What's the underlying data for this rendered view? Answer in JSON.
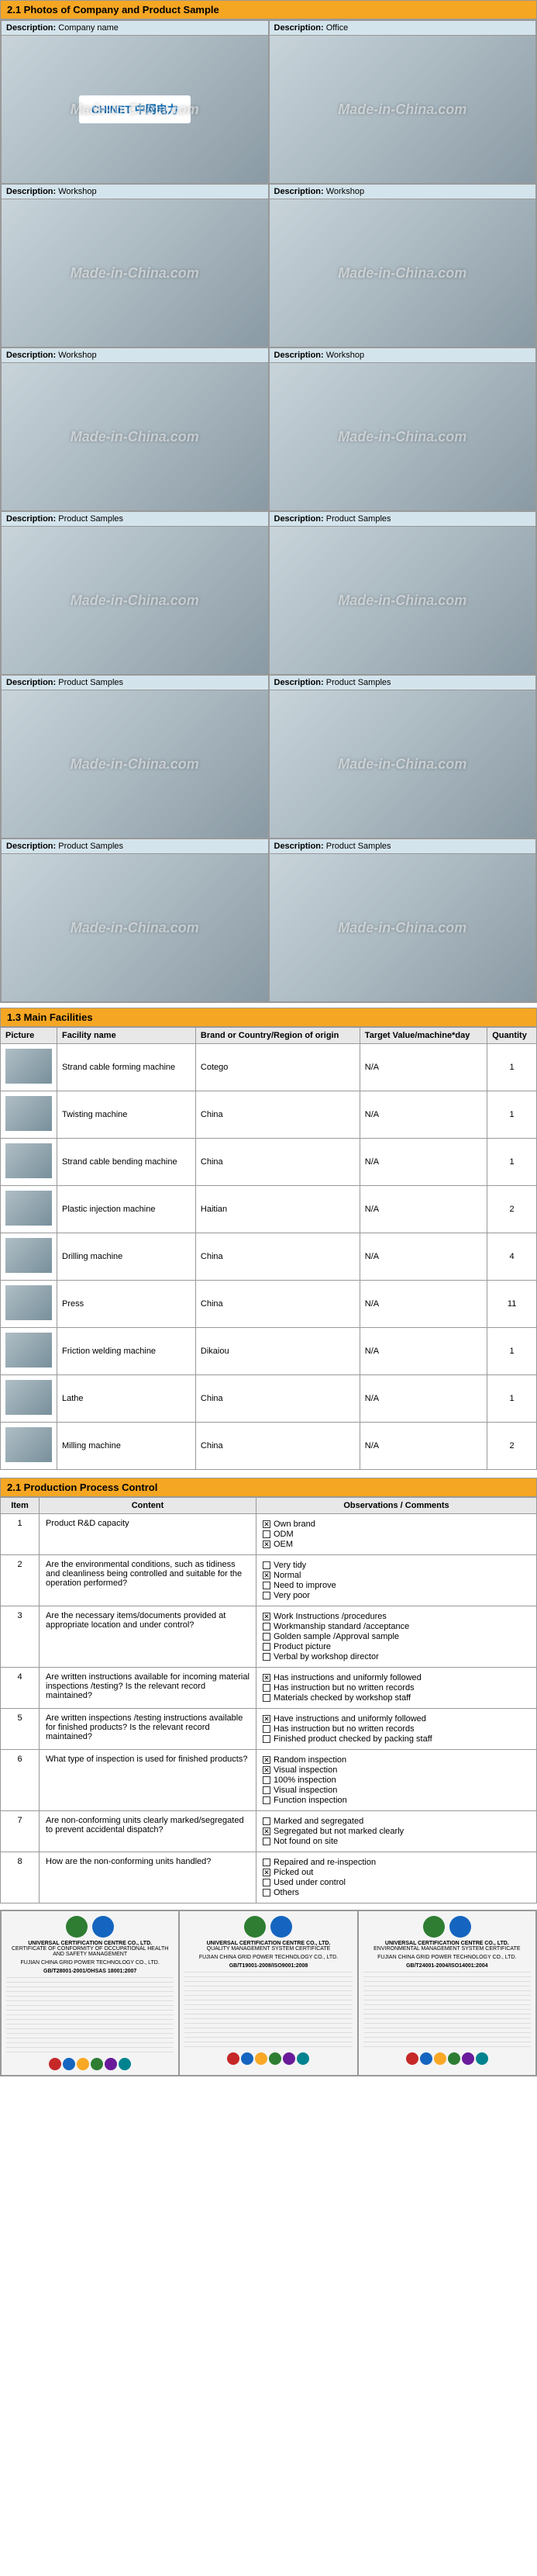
{
  "sections": {
    "photos_title": "2.1 Photos of Company and Product Sample",
    "facilities_title": "1.3 Main Facilities",
    "ppc_title": "2.1 Production Process Control"
  },
  "watermark": "Made-in-China.com",
  "photo_cells": [
    {
      "label": "Description:",
      "value": "Company name",
      "logo": "CHINET 中网电力"
    },
    {
      "label": "Description:",
      "value": "Office"
    },
    {
      "label": "Description:",
      "value": "Workshop"
    },
    {
      "label": "Description:",
      "value": "Workshop"
    },
    {
      "label": "Description:",
      "value": "Workshop"
    },
    {
      "label": "Description:",
      "value": "Workshop"
    },
    {
      "label": "Description:",
      "value": "Product Samples"
    },
    {
      "label": "Description:",
      "value": "Product Samples"
    },
    {
      "label": "Description:",
      "value": "Product Samples"
    },
    {
      "label": "Description:",
      "value": "Product Samples"
    },
    {
      "label": "Description:",
      "value": "Product Samples"
    },
    {
      "label": "Description:",
      "value": "Product Samples"
    }
  ],
  "facilities": {
    "headers": [
      "Picture",
      "Facility name",
      "Brand or Country/Region of origin",
      "Target Value/machine*day",
      "Quantity"
    ],
    "rows": [
      {
        "name": "Strand cable forming machine",
        "brand": "Cotego",
        "tv": "N/A",
        "qty": "1"
      },
      {
        "name": "Twisting machine",
        "brand": "China",
        "tv": "N/A",
        "qty": "1"
      },
      {
        "name": "Strand cable bending machine",
        "brand": "China",
        "tv": "N/A",
        "qty": "1"
      },
      {
        "name": "Plastic injection machine",
        "brand": "Haitian",
        "tv": "N/A",
        "qty": "2"
      },
      {
        "name": "Drilling machine",
        "brand": "China",
        "tv": "N/A",
        "qty": "4"
      },
      {
        "name": "Press",
        "brand": "China",
        "tv": "N/A",
        "qty": "11"
      },
      {
        "name": "Friction welding machine",
        "brand": "Dikaiou",
        "tv": "N/A",
        "qty": "1"
      },
      {
        "name": "Lathe",
        "brand": "China",
        "tv": "N/A",
        "qty": "1"
      },
      {
        "name": "Milling machine",
        "brand": "China",
        "tv": "N/A",
        "qty": "2"
      }
    ]
  },
  "ppc": {
    "headers": [
      "Item",
      "Content",
      "Observations / Comments"
    ],
    "rows": [
      {
        "n": "1",
        "content": "Product R&D capacity",
        "obs": [
          {
            "c": true,
            "t": "Own brand"
          },
          {
            "c": false,
            "t": "ODM"
          },
          {
            "c": true,
            "t": "OEM"
          }
        ]
      },
      {
        "n": "2",
        "content": "Are the environmental conditions, such as tidiness and cleanliness being controlled and suitable for the operation performed?",
        "obs": [
          {
            "c": false,
            "t": "Very tidy"
          },
          {
            "c": true,
            "t": "Normal"
          },
          {
            "c": false,
            "t": "Need to improve"
          },
          {
            "c": false,
            "t": "Very poor"
          }
        ]
      },
      {
        "n": "3",
        "content": "Are the necessary items/documents provided at appropriate location and under control?",
        "obs": [
          {
            "c": true,
            "t": "Work Instructions /procedures"
          },
          {
            "c": false,
            "t": "Workmanship standard /acceptance"
          },
          {
            "c": false,
            "t": "Golden sample /Approval sample"
          },
          {
            "c": false,
            "t": "Product picture"
          },
          {
            "c": false,
            "t": "Verbal by workshop director"
          }
        ]
      },
      {
        "n": "4",
        "content": "Are written instructions available for incoming material inspections /testing? Is the relevant record maintained?",
        "obs": [
          {
            "c": true,
            "t": "Has instructions and uniformly followed"
          },
          {
            "c": false,
            "t": "Has instruction but no written records"
          },
          {
            "c": false,
            "t": "Materials checked by workshop staff"
          }
        ]
      },
      {
        "n": "5",
        "content": "Are written inspections /testing instructions available for finished products? Is the relevant record maintained?",
        "obs": [
          {
            "c": true,
            "t": "Have instructions and uniformly followed"
          },
          {
            "c": false,
            "t": "Has instruction but no written records"
          },
          {
            "c": false,
            "t": "Finished product checked by packing staff"
          }
        ]
      },
      {
        "n": "6",
        "content": "What type of inspection is used for finished products?",
        "obs": [
          {
            "c": true,
            "t": "Random inspection"
          },
          {
            "c": true,
            "t": "Visual inspection"
          },
          {
            "c": false,
            "t": "100% inspection"
          },
          {
            "c": false,
            "t": "Visual inspection"
          },
          {
            "c": false,
            "t": "Function inspection"
          }
        ]
      },
      {
        "n": "7",
        "content": "Are non-conforming units clearly marked/segregated to prevent accidental dispatch?",
        "obs": [
          {
            "c": false,
            "t": "Marked and segregated"
          },
          {
            "c": true,
            "t": "Segregated but not marked clearly"
          },
          {
            "c": false,
            "t": "Not found on site"
          }
        ]
      },
      {
        "n": "8",
        "content": "How are the non-conforming units handled?",
        "obs": [
          {
            "c": false,
            "t": "Repaired and re-inspection"
          },
          {
            "c": true,
            "t": "Picked out"
          },
          {
            "c": false,
            "t": "Used under control"
          },
          {
            "c": false,
            "t": "Others"
          }
        ]
      }
    ]
  },
  "certs": [
    {
      "title": "UNIVERSAL CERTIFICATION CENTRE CO., LTD.",
      "sub": "CERTIFICATE OF CONFORMITY OF OCCUPATIONAL HEALTH AND SAFETY MANAGEMENT",
      "company": "FUJIAN CHINA GRID POWER TECHNOLOGY CO., LTD.",
      "std": "GB/T28001-2001/OHSAS 18001:2007",
      "seals": [
        "#2e7d32",
        "#1565c0"
      ],
      "badges": [
        "#c62828",
        "#1565c0",
        "#f9a825",
        "#2e7d32",
        "#6a1b9a",
        "#00838f"
      ]
    },
    {
      "title": "UNIVERSAL CERTIFICATION CENTRE CO., LTD.",
      "sub": "QUALITY MANAGEMENT SYSTEM CERTIFICATE",
      "company": "FUJIAN CHINA GRID POWER TECHNOLOGY CO., LTD.",
      "std": "GB/T19001-2008/ISO9001:2008",
      "seals": [
        "#2e7d32",
        "#1565c0"
      ],
      "badges": [
        "#c62828",
        "#1565c0",
        "#f9a825",
        "#2e7d32",
        "#6a1b9a",
        "#00838f"
      ]
    },
    {
      "title": "UNIVERSAL CERTIFICATION CENTRE CO., LTD.",
      "sub": "ENVIRONMENTAL MANAGEMENT SYSTEM CERTIFICATE",
      "company": "FUJIAN CHINA GRID POWER TECHNOLOGY CO., LTD.",
      "std": "GB/T24001-2004/ISO14001:2004",
      "seals": [
        "#2e7d32",
        "#1565c0"
      ],
      "badges": [
        "#c62828",
        "#1565c0",
        "#f9a825",
        "#2e7d32",
        "#6a1b9a",
        "#00838f"
      ]
    }
  ]
}
